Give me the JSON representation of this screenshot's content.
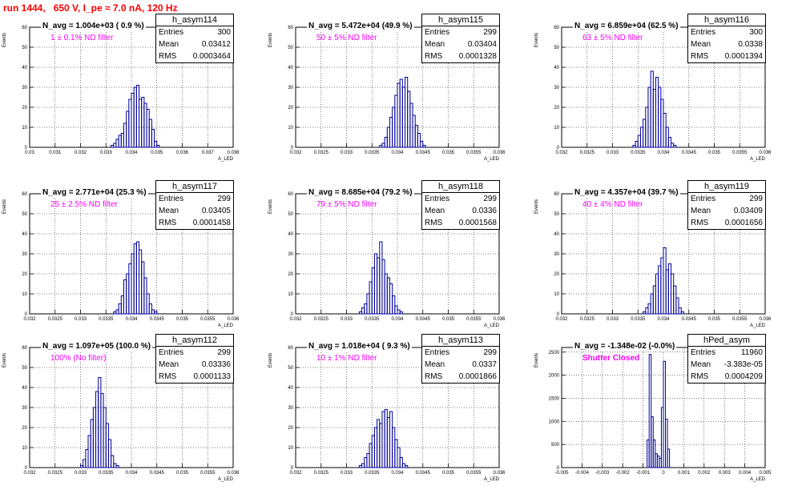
{
  "title": "run 1444,   650 V, I_pe ≈ 7.0 nA, 120 Hz",
  "chart_data": [
    {
      "type": "bar",
      "stats_name": "h_asym114",
      "entries": "300",
      "mean": "0.03412",
      "rms": "0.0003464",
      "navg": "N_avg = 1.004e+03 ( 0.9 %)",
      "filter": "1 ± 0.1% ND filter",
      "xlabel": "A_LED",
      "ylabel": "Events",
      "xlim": [
        0.03,
        0.038
      ],
      "ylim": [
        0,
        60
      ],
      "xticks": [
        0.03,
        0.031,
        0.032,
        0.033,
        0.034,
        0.035,
        0.036,
        0.037,
        0.038
      ],
      "xticklabels": [
        "0.03",
        "0.031",
        "0.032",
        "0.033",
        "0.034",
        "0.035",
        "0.036",
        "0.037",
        "0.038"
      ],
      "yticks": [
        0,
        10,
        20,
        30,
        40,
        50,
        60
      ],
      "yticklabels": [
        "0",
        "10",
        "20",
        "30",
        "40",
        "50",
        "60"
      ],
      "bins": {
        "start": 0.0332,
        "width": 0.0001,
        "values": [
          1,
          2,
          4,
          6,
          7,
          12,
          18,
          24,
          27,
          30,
          31,
          24,
          25,
          22,
          19,
          14,
          9,
          3,
          1
        ]
      }
    },
    {
      "type": "bar",
      "stats_name": "h_asym115",
      "entries": "299",
      "mean": "0.03404",
      "rms": "0.0001328",
      "navg": "N_avg = 5.472e+04 (49.9 %)",
      "filter": "50 ± 5% ND filter",
      "xlabel": "A_LED",
      "ylabel": "Events",
      "xlim": [
        0.032,
        0.036
      ],
      "ylim": [
        0,
        60
      ],
      "xticks": [
        0.032,
        0.0325,
        0.033,
        0.0335,
        0.034,
        0.0345,
        0.035,
        0.0355,
        0.036
      ],
      "xticklabels": [
        "0.032",
        "0.0325",
        "0.033",
        "0.0335",
        "0.034",
        "0.0345",
        "0.035",
        "0.0355",
        "0.036"
      ],
      "yticks": [
        0,
        10,
        20,
        30,
        40,
        50,
        60
      ],
      "yticklabels": [
        "0",
        "10",
        "20",
        "30",
        "40",
        "50",
        "60"
      ],
      "bins": {
        "start": 0.03365,
        "width": 5e-05,
        "values": [
          1,
          2,
          5,
          10,
          15,
          20,
          26,
          32,
          34,
          30,
          35,
          28,
          22,
          16,
          11,
          7,
          3,
          1
        ]
      }
    },
    {
      "type": "bar",
      "stats_name": "h_asym116",
      "entries": "300",
      "mean": "0.0338",
      "rms": "0.0001394",
      "navg": "N_avg = 6.859e+04 (62.5 %)",
      "filter": "63 ± 5% ND filter",
      "xlabel": "A_LED",
      "ylabel": "Events",
      "xlim": [
        0.032,
        0.036
      ],
      "ylim": [
        0,
        60
      ],
      "xticks": [
        0.032,
        0.0325,
        0.033,
        0.0335,
        0.034,
        0.0345,
        0.035,
        0.0355,
        0.036
      ],
      "xticklabels": [
        "0.032",
        "0.0325",
        "0.033",
        "0.0335",
        "0.034",
        "0.0345",
        "0.035",
        "0.0355",
        "0.036"
      ],
      "yticks": [
        0,
        10,
        20,
        30,
        40,
        50,
        60
      ],
      "yticklabels": [
        "0",
        "10",
        "20",
        "30",
        "40",
        "50",
        "60"
      ],
      "bins": {
        "start": 0.0334,
        "width": 5e-05,
        "values": [
          1,
          3,
          6,
          10,
          14,
          20,
          30,
          38,
          29,
          35,
          30,
          24,
          17,
          10,
          5,
          2,
          1
        ]
      }
    },
    {
      "type": "bar",
      "stats_name": "h_asym117",
      "entries": "299",
      "mean": "0.03405",
      "rms": "0.0001458",
      "navg": "N_avg = 2.771e+04 (25.3 %)",
      "filter": "25 ± 2.5% ND filter",
      "xlabel": "A_LED",
      "ylabel": "Events",
      "xlim": [
        0.032,
        0.036
      ],
      "ylim": [
        0,
        60
      ],
      "xticks": [
        0.032,
        0.0325,
        0.033,
        0.0335,
        0.034,
        0.0345,
        0.035,
        0.0355,
        0.036
      ],
      "xticklabels": [
        "0.032",
        "0.0325",
        "0.033",
        "0.0335",
        "0.034",
        "0.0345",
        "0.035",
        "0.0355",
        "0.036"
      ],
      "yticks": [
        0,
        10,
        20,
        30,
        40,
        50,
        60
      ],
      "yticklabels": [
        "0",
        "10",
        "20",
        "30",
        "40",
        "50",
        "60"
      ],
      "bins": {
        "start": 0.03365,
        "width": 5e-05,
        "values": [
          1,
          2,
          5,
          9,
          17,
          20,
          25,
          30,
          35,
          36,
          32,
          26,
          18,
          10,
          5,
          2,
          1
        ]
      }
    },
    {
      "type": "bar",
      "stats_name": "h_asym118",
      "entries": "299",
      "mean": "0.0336",
      "rms": "0.0001568",
      "navg": "N_avg = 8.685e+04 (79.2 %)",
      "filter": "79 ± 5% ND filter",
      "xlabel": "A_LED",
      "ylabel": "Events",
      "xlim": [
        0.032,
        0.036
      ],
      "ylim": [
        0,
        60
      ],
      "xticks": [
        0.032,
        0.0325,
        0.033,
        0.0335,
        0.034,
        0.0345,
        0.035,
        0.0355,
        0.036
      ],
      "xticklabels": [
        "0.032",
        "0.0325",
        "0.033",
        "0.0335",
        "0.034",
        "0.0345",
        "0.035",
        "0.0355",
        "0.036"
      ],
      "yticks": [
        0,
        10,
        20,
        30,
        40,
        50,
        60
      ],
      "yticklabels": [
        "0",
        "10",
        "20",
        "30",
        "40",
        "50",
        "60"
      ],
      "bins": {
        "start": 0.03325,
        "width": 5e-05,
        "values": [
          1,
          3,
          5,
          10,
          16,
          23,
          30,
          28,
          36,
          27,
          20,
          18,
          15,
          9,
          4,
          2,
          1
        ]
      }
    },
    {
      "type": "bar",
      "stats_name": "h_asym119",
      "entries": "299",
      "mean": "0.03409",
      "rms": "0.0001656",
      "navg": "N_avg = 4.357e+04 (39.7 %)",
      "filter": "40 ± 4% ND filter",
      "xlabel": "A_LED",
      "ylabel": "Events",
      "xlim": [
        0.032,
        0.036
      ],
      "ylim": [
        0,
        60
      ],
      "xticks": [
        0.032,
        0.0325,
        0.033,
        0.0335,
        0.034,
        0.0345,
        0.035,
        0.0355,
        0.036
      ],
      "xticklabels": [
        "0.032",
        "0.0325",
        "0.033",
        "0.0335",
        "0.034",
        "0.0345",
        "0.035",
        "0.0355",
        "0.036"
      ],
      "yticks": [
        0,
        10,
        20,
        30,
        40,
        50,
        60
      ],
      "yticklabels": [
        "0",
        "10",
        "20",
        "30",
        "40",
        "50",
        "60"
      ],
      "bins": {
        "start": 0.0336,
        "width": 5e-05,
        "values": [
          1,
          3,
          5,
          10,
          14,
          20,
          24,
          28,
          33,
          22,
          25,
          20,
          14,
          8,
          3,
          1
        ]
      }
    },
    {
      "type": "bar",
      "stats_name": "h_asym112",
      "entries": "299",
      "mean": "0.03336",
      "rms": "0.0001133",
      "navg": "N_avg = 1.097e+05 (100.0 %)",
      "filter": "100% (No filter)",
      "xlabel": "A_LED",
      "ylabel": "Events",
      "xlim": [
        0.032,
        0.036
      ],
      "ylim": [
        0,
        60
      ],
      "xticks": [
        0.032,
        0.0325,
        0.033,
        0.0335,
        0.034,
        0.0345,
        0.035,
        0.0355,
        0.036
      ],
      "xticklabels": [
        "0.032",
        "0.0325",
        "0.033",
        "0.0335",
        "0.034",
        "0.0345",
        "0.035",
        "0.0355",
        "0.036"
      ],
      "yticks": [
        0,
        10,
        20,
        30,
        40,
        50,
        60
      ],
      "yticklabels": [
        "0",
        "10",
        "20",
        "30",
        "40",
        "50",
        "60"
      ],
      "bins": {
        "start": 0.033,
        "width": 5e-05,
        "values": [
          1,
          4,
          9,
          16,
          24,
          30,
          38,
          45,
          37,
          30,
          22,
          14,
          6,
          2,
          1
        ]
      }
    },
    {
      "type": "bar",
      "stats_name": "h_asym113",
      "entries": "299",
      "mean": "0.0337",
      "rms": "0.0001866",
      "navg": "N_avg = 1.018e+04 ( 9.3 %)",
      "filter": "10 ± 1% ND filter",
      "xlabel": "A_LED",
      "ylabel": "Events",
      "xlim": [
        0.032,
        0.036
      ],
      "ylim": [
        0,
        60
      ],
      "xticks": [
        0.032,
        0.0325,
        0.033,
        0.0335,
        0.034,
        0.0345,
        0.035,
        0.0355,
        0.036
      ],
      "xticklabels": [
        "0.032",
        "0.0325",
        "0.033",
        "0.0335",
        "0.034",
        "0.0345",
        "0.035",
        "0.0355",
        "0.036"
      ],
      "yticks": [
        0,
        10,
        20,
        30,
        40,
        50,
        60
      ],
      "yticklabels": [
        "0",
        "10",
        "20",
        "30",
        "40",
        "50",
        "60"
      ],
      "bins": {
        "start": 0.03325,
        "width": 5e-05,
        "values": [
          1,
          2,
          5,
          7,
          12,
          16,
          20,
          24,
          22,
          28,
          29,
          25,
          28,
          20,
          14,
          10,
          5,
          2,
          1
        ]
      }
    },
    {
      "type": "bar",
      "stats_name": "hPed_asym",
      "entries": "11960",
      "mean": "-3.383e-05",
      "rms": "0.0004209",
      "navg": "N_avg = -1.348e-02 (-0.0%)",
      "filter": "Shutter Closed",
      "filter_bold": true,
      "xlabel": "A_LED",
      "ylabel": "Events",
      "xlim": [
        -0.005,
        0.005
      ],
      "ylim": [
        0,
        2600
      ],
      "xticks": [
        -0.005,
        -0.004,
        -0.003,
        -0.002,
        -0.001,
        0,
        0.001,
        0.002,
        0.003,
        0.004,
        0.005
      ],
      "xticklabels": [
        "-0.005",
        "-0.004",
        "-0.003",
        "-0.002",
        "-0.001",
        "0",
        "0.001",
        "0.002",
        "0.003",
        "0.004",
        "0.005"
      ],
      "yticks": [
        0,
        500,
        1000,
        1500,
        2000,
        2500
      ],
      "yticklabels": [
        "0",
        "500",
        "1000",
        "1500",
        "2000",
        "2500"
      ],
      "bins": {
        "start": -0.0008,
        "width": 0.0001,
        "values": [
          600,
          2450,
          1100,
          600,
          300,
          250,
          200,
          1300,
          2300,
          1050,
          400
        ]
      }
    }
  ]
}
